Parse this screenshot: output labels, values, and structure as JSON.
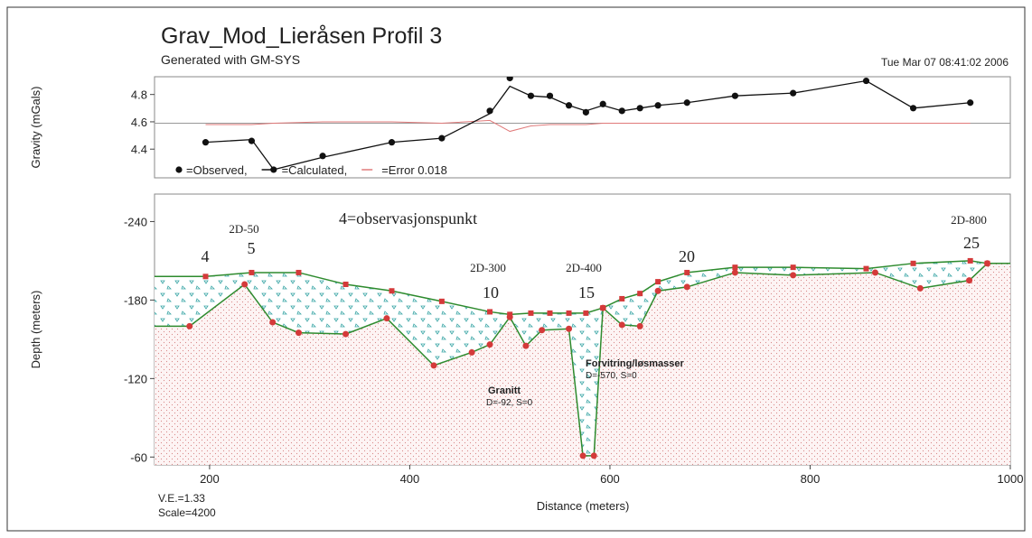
{
  "chart_data": [
    {
      "type": "line",
      "title": "Grav_Mod_Lieråsen Profil 3",
      "subtitle": "Generated with GM-SYS",
      "date": "Tue Mar 07 08:41:02 2006",
      "ylabel": "Gravity (mGals)",
      "xlim": [
        145,
        1000
      ],
      "ylim": [
        4.19,
        4.93
      ],
      "yticks": [
        4.4,
        4.6,
        4.8
      ],
      "legend": "lower left",
      "error_baseline": 4.59,
      "x": [
        196,
        242,
        264,
        313,
        382,
        432,
        480,
        500,
        521,
        540,
        559,
        576,
        593,
        612,
        630,
        648,
        677,
        725,
        783,
        856,
        903,
        960
      ],
      "series": [
        {
          "name": "=Observed,",
          "color": "#111111",
          "marker": true,
          "values": [
            4.45,
            4.46,
            4.25,
            4.35,
            4.45,
            4.48,
            4.68,
            4.92,
            4.79,
            4.79,
            4.72,
            4.67,
            4.73,
            4.68,
            4.7,
            4.72,
            4.74,
            4.79,
            4.81,
            4.9,
            4.7,
            4.74
          ]
        },
        {
          "name": "=Calculated,",
          "color": "#111111",
          "marker": false,
          "values": [
            4.45,
            4.47,
            4.25,
            4.34,
            4.45,
            4.48,
            4.66,
            4.86,
            4.79,
            4.78,
            4.72,
            4.68,
            4.72,
            4.68,
            4.7,
            4.72,
            4.74,
            4.79,
            4.81,
            4.9,
            4.7,
            4.74
          ]
        },
        {
          "name": "=Error 0.018",
          "color": "#e07a7a",
          "marker": false,
          "values": [
            4.58,
            4.58,
            4.59,
            4.6,
            4.6,
            4.59,
            4.61,
            4.53,
            4.57,
            4.58,
            4.58,
            4.58,
            4.59,
            4.59,
            4.59,
            4.59,
            4.59,
            4.59,
            4.59,
            4.59,
            4.59,
            4.59
          ]
        }
      ]
    },
    {
      "type": "profile",
      "xlabel": "Distance (meters)",
      "ylabel": "Depth (meters)",
      "note_ve": "V.E.=1.33",
      "note_scale": "Scale=4200",
      "xlim": [
        145,
        1000
      ],
      "xticks": [
        200,
        400,
        600,
        800,
        1000
      ],
      "ylim": [
        -54,
        -261
      ],
      "yticks": [
        -240,
        -180,
        -120,
        -60
      ],
      "line_color": "#2e8b2e",
      "marker_color": "#d43a3a",
      "surface": {
        "x": [
          145,
          196,
          242,
          289,
          336,
          382,
          432,
          480,
          500,
          521,
          540,
          559,
          576,
          593,
          612,
          630,
          648,
          677,
          725,
          783,
          856,
          903,
          960,
          977,
          1000
        ],
        "values": [
          -198,
          -198,
          -201,
          -201,
          -192,
          -187,
          -179,
          -171,
          -169,
          -170,
          -170,
          -170,
          -170,
          -174,
          -181,
          -185,
          -194,
          -201,
          -205,
          -205,
          -204,
          -208,
          -210,
          -208,
          -208
        ]
      },
      "base": {
        "x": [
          145,
          180,
          235,
          263,
          289,
          336,
          377,
          424,
          462,
          480,
          500,
          516,
          532,
          559,
          573,
          584,
          593,
          612,
          630,
          648,
          677,
          725,
          783,
          865,
          910,
          959,
          977,
          1000
        ],
        "values": [
          -160,
          -160,
          -192,
          -163,
          -155,
          -154,
          -166,
          -130,
          -140,
          -146,
          -167,
          -145,
          -157,
          -158,
          -61,
          -61,
          -174,
          -161,
          -160,
          -187,
          -190,
          -201,
          -199,
          -201,
          -189,
          -195,
          -208,
          -208
        ]
      },
      "annotations": [
        "4=observasjonspunkt",
        "4",
        "5",
        "10",
        "15",
        "20",
        "25",
        "2D-50",
        "2D-300",
        "2D-400",
        "2D-800",
        "Granitt",
        "D=-92, S=0",
        "Forvitring/løsmasser",
        "D=-570, S=0"
      ]
    }
  ]
}
